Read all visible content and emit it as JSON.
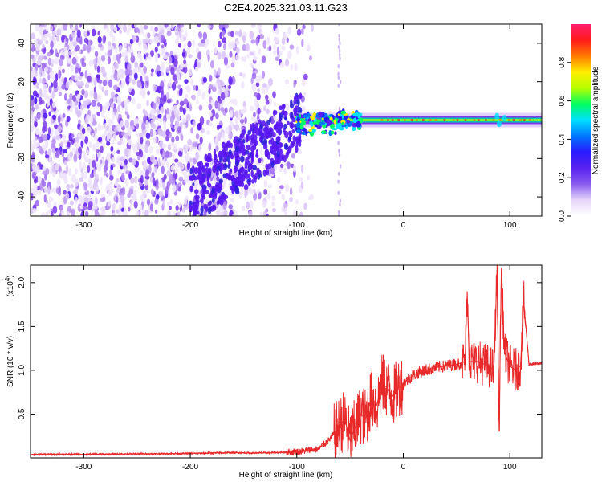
{
  "figure_title": "C2E4.2025.321.03.11.G23",
  "colorbar": {
    "label": "Normalized spectral amplitude",
    "ticks": [
      "0.0",
      "0.2",
      "0.4",
      "0.6",
      "0.8"
    ],
    "tick_values": [
      0.0,
      0.2,
      0.4,
      0.6,
      0.8
    ],
    "range": [
      0,
      1
    ],
    "colors": [
      "#ffffff",
      "#e6d6fa",
      "#8a5cf0",
      "#5a22f0",
      "#2a1aff",
      "#0077ff",
      "#00e0ff",
      "#00ff60",
      "#b6ff00",
      "#ffee00",
      "#ff7a00",
      "#ff1a1a",
      "#ff1f6e"
    ]
  },
  "chart_data": [
    {
      "type": "heatmap",
      "title": "",
      "xlabel": "Height of straight line (km)",
      "ylabel": "Frequency (Hz)",
      "xlim": [
        -350,
        130
      ],
      "ylim": [
        -50,
        50
      ],
      "x_ticks": [
        "-300",
        "-200",
        "-100",
        "0",
        "100"
      ],
      "x_tick_values": [
        -300,
        -200,
        -100,
        0,
        100
      ],
      "y_ticks": [
        "-40",
        "-20",
        "0",
        "20",
        "40"
      ],
      "y_tick_values": [
        -40,
        -20,
        0,
        20,
        40
      ],
      "features": {
        "diffuse_noise_region_x": [
          -350,
          -95
        ],
        "signal_line_frequency": 0,
        "signal_start_x": -100,
        "secondary_spike_x": -60
      }
    },
    {
      "type": "line",
      "title": "",
      "xlabel": "Height of straight line (km)",
      "ylabel": "SNR (10 * v/v)",
      "y_scale_label": "(x10",
      "y_scale_exp": "4",
      "y_scale_close": ")",
      "xlim": [
        -350,
        130
      ],
      "ylim": [
        0,
        2.2
      ],
      "x_ticks": [
        "-300",
        "-200",
        "-100",
        "0",
        "100"
      ],
      "x_tick_values": [
        -300,
        -200,
        -100,
        0,
        100
      ],
      "y_ticks": [
        "0.5",
        "1.0",
        "1.5",
        "2.0"
      ],
      "y_tick_values": [
        0.5,
        1.0,
        1.5,
        2.0
      ],
      "color": "#e8292a",
      "series": [
        {
          "name": "SNR",
          "x": [
            -350,
            -300,
            -250,
            -200,
            -160,
            -140,
            -120,
            -100,
            -80,
            -70,
            -60,
            -55,
            -50,
            -45,
            -40,
            -35,
            -30,
            -25,
            -20,
            -15,
            -10,
            -5,
            0,
            10,
            20,
            30,
            40,
            50,
            58,
            60,
            62,
            70,
            80,
            85,
            88,
            90,
            92,
            95,
            100,
            105,
            110,
            113,
            118,
            125,
            130
          ],
          "y": [
            0.04,
            0.04,
            0.045,
            0.05,
            0.06,
            0.055,
            0.06,
            0.07,
            0.1,
            0.2,
            0.35,
            0.45,
            0.2,
            0.35,
            0.5,
            0.45,
            0.7,
            0.6,
            0.85,
            0.8,
            0.7,
            0.8,
            0.85,
            0.95,
            1.0,
            1.03,
            1.05,
            1.07,
            1.1,
            1.9,
            1.1,
            1.1,
            1.05,
            1.0,
            2.15,
            0.3,
            2.15,
            1.2,
            1.05,
            1.0,
            1.05,
            1.8,
            1.07,
            1.07,
            1.08
          ]
        }
      ]
    }
  ]
}
